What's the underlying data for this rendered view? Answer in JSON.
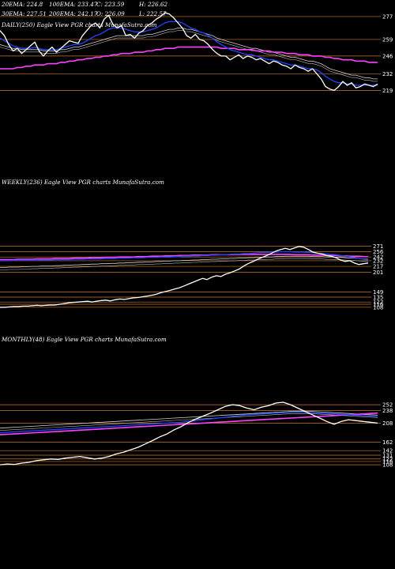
{
  "colors": {
    "background": "#000000",
    "price": "#ffffff",
    "ema_fast": "#2244ff",
    "ema_mid": "#d0d0d0",
    "ema_slow": "#ff40ff",
    "level": "#c8782a",
    "label": "#ffffff"
  },
  "legend": {
    "row1": [
      "20EMA: 224.8",
      "100EMA: 233.47",
      "C: 223.59",
      "H: 226.62"
    ],
    "row2": [
      "30EMA: 227.51",
      "200EMA: 242.17",
      "O: 226.09",
      "L: 222.57"
    ]
  },
  "chart_data": [
    {
      "type": "line",
      "title": "DAILY(250) Eagle   View  PGR charts MunafaSutra.com",
      "y_ticks": [
        "277",
        "259",
        "246",
        "232",
        "219"
      ],
      "ylim": [
        200,
        290
      ],
      "series": [
        {
          "role": "price",
          "values": [
            266,
            262,
            255,
            250,
            252,
            248,
            251,
            254,
            257,
            250,
            246,
            250,
            253,
            249,
            252,
            255,
            258,
            257,
            256,
            262,
            266,
            270,
            272,
            268,
            275,
            278,
            271,
            268,
            270,
            262,
            263,
            260,
            264,
            266,
            270,
            272,
            275,
            277,
            280,
            279,
            276,
            272,
            268,
            262,
            260,
            263,
            259,
            258,
            255,
            251,
            248,
            246,
            246,
            243,
            245,
            247,
            244,
            246,
            245,
            243,
            244,
            242,
            240,
            242,
            241,
            239,
            238,
            236,
            239,
            237,
            236,
            234,
            236,
            232,
            228,
            222,
            220,
            219,
            222,
            226,
            223,
            225,
            221,
            222,
            224,
            223,
            222,
            224
          ]
        },
        {
          "role": "ema-fast",
          "values": [
            260,
            258,
            256,
            254,
            253,
            252,
            252,
            252,
            253,
            252,
            251,
            251,
            251,
            251,
            252,
            253,
            254,
            255,
            255,
            256,
            258,
            260,
            262,
            263,
            265,
            267,
            268,
            268,
            268,
            267,
            266,
            265,
            265,
            265,
            266,
            267,
            268,
            270,
            272,
            273,
            273,
            273,
            272,
            270,
            268,
            267,
            265,
            264,
            262,
            260,
            257,
            255,
            253,
            251,
            250,
            249,
            248,
            247,
            247,
            246,
            245,
            244,
            243,
            243,
            242,
            241,
            240,
            239,
            239,
            238,
            237,
            236,
            236,
            235,
            233,
            230,
            228,
            226,
            225,
            225,
            224,
            224,
            223,
            223,
            223,
            223,
            223,
            223
          ]
        },
        {
          "role": "ema-mid",
          "values": [
            255,
            254,
            253,
            252,
            252,
            251,
            251,
            251,
            251,
            251,
            250,
            250,
            250,
            250,
            251,
            251,
            252,
            253,
            253,
            254,
            255,
            256,
            257,
            258,
            259,
            260,
            261,
            262,
            262,
            262,
            262,
            262,
            262,
            262,
            263,
            263,
            264,
            265,
            266,
            267,
            267,
            268,
            268,
            267,
            267,
            266,
            265,
            264,
            263,
            262,
            260,
            259,
            258,
            257,
            256,
            255,
            254,
            253,
            252,
            252,
            251,
            250,
            249,
            249,
            248,
            247,
            246,
            245,
            245,
            244,
            243,
            242,
            242,
            241,
            240,
            238,
            236,
            235,
            234,
            233,
            232,
            231,
            231,
            230,
            229,
            229,
            228,
            228
          ]
        },
        {
          "role": "ema-slow",
          "values": [
            236,
            236,
            236,
            236,
            237,
            237,
            238,
            238,
            239,
            239,
            239,
            240,
            240,
            240,
            241,
            241,
            242,
            242,
            243,
            243,
            244,
            244,
            245,
            245,
            246,
            246,
            247,
            247,
            248,
            248,
            248,
            249,
            249,
            249,
            250,
            250,
            251,
            251,
            252,
            252,
            252,
            253,
            253,
            253,
            253,
            253,
            253,
            253,
            253,
            253,
            253,
            252,
            252,
            252,
            252,
            251,
            251,
            251,
            251,
            250,
            250,
            250,
            250,
            249,
            249,
            249,
            248,
            248,
            248,
            247,
            247,
            247,
            246,
            246,
            246,
            245,
            245,
            244,
            244,
            243,
            243,
            243,
            242,
            242,
            242,
            241,
            241,
            241
          ]
        }
      ]
    },
    {
      "type": "line",
      "title": "WEEKLY(236) Eagle   View  PGR charts MunafaSutra.com",
      "y_ticks": [
        "271",
        "256",
        "242",
        "232",
        "217",
        "201",
        "149",
        "135",
        "122",
        "116",
        "108"
      ],
      "ylim": [
        95,
        295
      ],
      "series": [
        {
          "role": "price",
          "values": [
            108,
            108,
            109,
            110,
            110,
            111,
            111,
            112,
            113,
            112,
            113,
            114,
            114,
            116,
            118,
            120,
            121,
            122,
            123,
            124,
            122,
            124,
            126,
            127,
            125,
            128,
            130,
            129,
            131,
            133,
            134,
            136,
            138,
            140,
            143,
            147,
            150,
            153,
            157,
            160,
            165,
            170,
            175,
            180,
            185,
            182,
            188,
            192,
            190,
            196,
            200,
            205,
            210,
            218,
            225,
            230,
            236,
            241,
            246,
            252,
            258,
            262,
            265,
            262,
            266,
            270,
            268,
            262,
            255,
            252,
            250,
            246,
            244,
            240,
            234,
            230,
            232,
            226,
            222,
            224,
            226
          ]
        },
        {
          "role": "ema-fast",
          "values": [
            232,
            232,
            232,
            233,
            233,
            233,
            233,
            233,
            233,
            234,
            234,
            234,
            235,
            235,
            235,
            235,
            236,
            236,
            236,
            237,
            237,
            237,
            237,
            238,
            238,
            238,
            239,
            239,
            239,
            240,
            240,
            240,
            241,
            241,
            241,
            242,
            242,
            242,
            243,
            243,
            244,
            244,
            245,
            245,
            246,
            246,
            247,
            247,
            248,
            248,
            249,
            250,
            250,
            251,
            251,
            252,
            253,
            254,
            254,
            255,
            255,
            256,
            256,
            256,
            255,
            255,
            255,
            254,
            253,
            252,
            251,
            250,
            249,
            248,
            246,
            244,
            242,
            240,
            238,
            236,
            234
          ]
        },
        {
          "role": "ema-mid",
          "values": [
            214,
            214,
            215,
            215,
            215,
            216,
            216,
            217,
            217,
            218,
            218,
            218,
            219,
            219,
            220,
            220,
            221,
            221,
            222,
            222,
            223,
            223,
            224,
            224,
            225,
            225,
            226,
            226,
            227,
            227,
            228,
            228,
            229,
            229,
            230,
            230,
            231,
            231,
            232,
            232,
            233,
            233,
            234,
            234,
            235,
            235,
            236,
            236,
            237,
            237,
            238,
            238,
            239,
            239,
            240,
            240,
            241,
            241,
            242,
            242,
            243,
            243,
            244,
            244,
            244,
            244,
            244,
            244,
            243,
            243,
            243,
            242,
            242,
            241,
            241,
            240,
            239,
            239,
            238,
            237,
            236
          ]
        },
        {
          "role": "ema-slow",
          "values": [
            235,
            235,
            235,
            235,
            236,
            236,
            236,
            236,
            237,
            237,
            237,
            237,
            238,
            238,
            238,
            238,
            239,
            239,
            239,
            239,
            240,
            240,
            240,
            241,
            241,
            241,
            242,
            242,
            242,
            242,
            243,
            243,
            243,
            244,
            244,
            244,
            245,
            245,
            245,
            246,
            246,
            246,
            247,
            247,
            247,
            247,
            248,
            248,
            248,
            248,
            248,
            249,
            249,
            249,
            249,
            249,
            249,
            249,
            249,
            249,
            249,
            249,
            249,
            249,
            248,
            248,
            248,
            248,
            247,
            247,
            247,
            246,
            246,
            246,
            245,
            245,
            244,
            244,
            244,
            243,
            243
          ]
        }
      ]
    },
    {
      "type": "line",
      "title": "MONTHLY(48) Eagle   View  PGR charts MunafaSutra.com",
      "y_ticks": [
        "252",
        "238",
        "208",
        "162",
        "142",
        "131",
        "122",
        "116",
        "108"
      ],
      "ylim": [
        95,
        275
      ],
      "series": [
        {
          "role": "price",
          "values": [
            108,
            110,
            109,
            112,
            114,
            118,
            120,
            122,
            121,
            124,
            126,
            128,
            125,
            122,
            124,
            128,
            134,
            138,
            144,
            150,
            158,
            166,
            175,
            182,
            192,
            200,
            210,
            218,
            225,
            232,
            240,
            248,
            252,
            250,
            244,
            240,
            246,
            250,
            256,
            258,
            252,
            244,
            236,
            228,
            220,
            212,
            205,
            212,
            216,
            214,
            212,
            210,
            208
          ]
        },
        {
          "role": "ema-fast",
          "values": [
            185,
            186,
            187,
            188,
            189,
            190,
            191,
            192,
            193,
            194,
            195,
            196,
            197,
            198,
            199,
            200,
            201,
            202,
            203,
            204,
            205,
            206,
            207,
            208,
            209,
            210,
            212,
            214,
            216,
            218,
            220,
            222,
            224,
            226,
            228,
            229,
            230,
            231,
            232,
            233,
            234,
            234,
            234,
            233,
            232,
            231,
            230,
            229,
            228,
            227,
            226,
            225,
            224
          ]
        },
        {
          "role": "ema-mid",
          "values": [
            196,
            197,
            198,
            199,
            200,
            201,
            202,
            203,
            204,
            205,
            206,
            207,
            208,
            209,
            210,
            211,
            212,
            213,
            214,
            215,
            216,
            217,
            218,
            219,
            220,
            221,
            222,
            223,
            224,
            225,
            226,
            227,
            228,
            229,
            230,
            231,
            232,
            233,
            234,
            235,
            236,
            236,
            236,
            236,
            235,
            234,
            233,
            232,
            231,
            230,
            229,
            228,
            227
          ]
        },
        {
          "role": "ema-slow",
          "values": [
            180,
            181,
            182,
            183,
            184,
            185,
            186,
            187,
            188,
            189,
            190,
            191,
            192,
            193,
            194,
            195,
            196,
            197,
            198,
            199,
            200,
            201,
            202,
            203,
            204,
            205,
            206,
            207,
            208,
            209,
            210,
            211,
            212,
            213,
            214,
            215,
            216,
            217,
            218,
            219,
            220,
            221,
            222,
            223,
            224,
            225,
            226,
            227,
            228,
            229,
            230,
            231,
            232
          ]
        }
      ]
    }
  ]
}
